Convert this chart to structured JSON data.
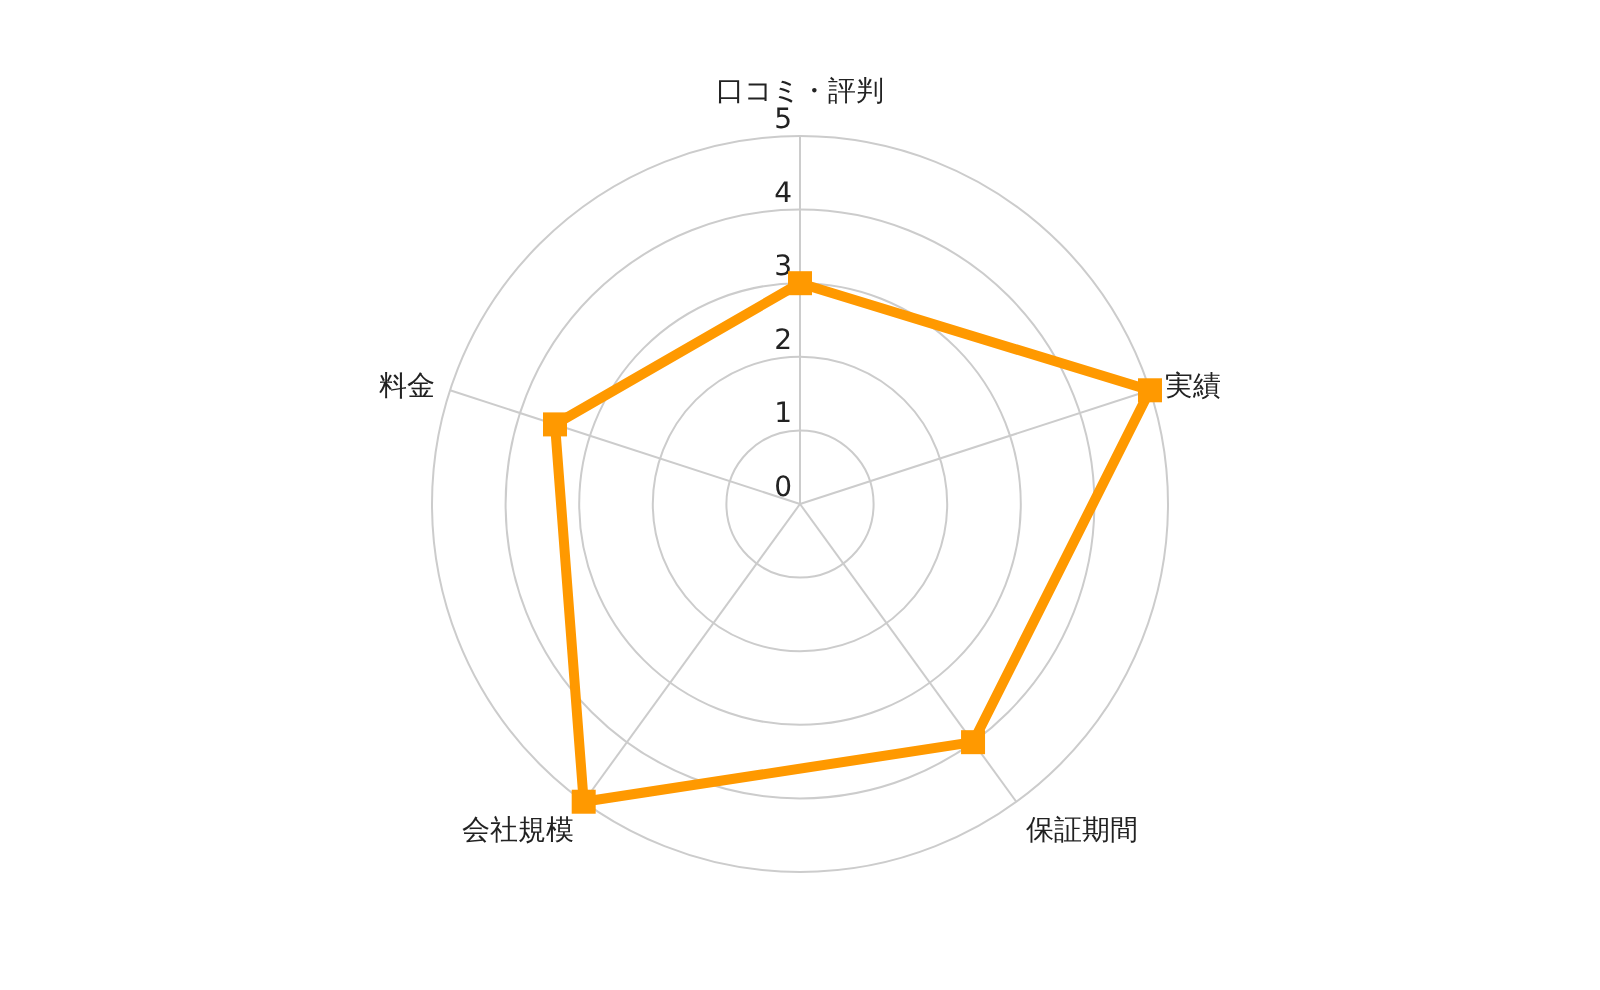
{
  "chart_data": {
    "type": "radar",
    "categories": [
      "口コミ・評判",
      "実績",
      "保証期間",
      "会社規模",
      "料金"
    ],
    "series": [
      {
        "color": "#ff9900",
        "values": [
          3,
          5,
          4,
          5,
          3.5
        ]
      }
    ],
    "ylim": [
      0,
      5
    ],
    "yticks": [
      0,
      1,
      2,
      3,
      4,
      5
    ],
    "grid": true,
    "legend": false,
    "marker": "square",
    "line_style": "solid"
  }
}
